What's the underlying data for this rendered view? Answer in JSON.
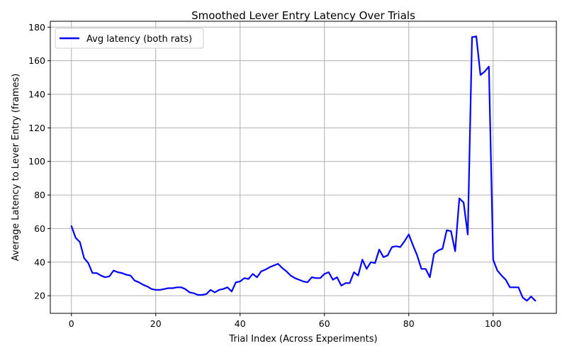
{
  "chart_data": {
    "type": "line",
    "title": "Smoothed Lever Entry Latency Over Trials",
    "xlabel": "Trial Index (Across Experiments)",
    "ylabel": "Average Latency to Lever Entry (frames)",
    "xlim": [
      -5,
      115
    ],
    "ylim": [
      9.5,
      183.5
    ],
    "xticks": [
      0,
      20,
      40,
      60,
      80,
      100
    ],
    "yticks": [
      20,
      40,
      60,
      80,
      100,
      120,
      140,
      160,
      180
    ],
    "grid": true,
    "legend_position": "upper-left",
    "series": [
      {
        "name": "Avg latency (both rats)",
        "color": "#0000ff",
        "x": [
          0,
          1,
          2,
          3,
          4,
          5,
          6,
          7,
          8,
          9,
          10,
          11,
          12,
          13,
          14,
          15,
          16,
          17,
          18,
          19,
          20,
          21,
          22,
          23,
          24,
          25,
          26,
          27,
          28,
          29,
          30,
          31,
          32,
          33,
          34,
          35,
          36,
          37,
          38,
          39,
          40,
          41,
          42,
          43,
          44,
          45,
          46,
          47,
          48,
          49,
          50,
          51,
          52,
          53,
          54,
          55,
          56,
          57,
          58,
          59,
          60,
          61,
          62,
          63,
          64,
          65,
          66,
          67,
          68,
          69,
          70,
          71,
          72,
          73,
          74,
          75,
          76,
          77,
          78,
          79,
          80,
          81,
          82,
          83,
          84,
          85,
          86,
          87,
          88,
          89,
          90,
          91,
          92,
          93,
          94,
          95,
          96,
          97,
          98,
          99,
          100,
          101,
          102,
          103,
          104,
          105,
          106,
          107,
          108,
          109,
          110
        ],
        "y": [
          61.5,
          54.5,
          52,
          42.5,
          39.5,
          33.5,
          33.5,
          32,
          31,
          31.5,
          35,
          34,
          33.5,
          32.5,
          32,
          29,
          28,
          26.5,
          25.5,
          24,
          23.5,
          23.5,
          24,
          24.5,
          24.5,
          25,
          25,
          24,
          22,
          21.5,
          20.5,
          20.5,
          21,
          23.5,
          22,
          23.5,
          24,
          25,
          22.5,
          28,
          28.5,
          30.5,
          30,
          33,
          31,
          34.5,
          35.5,
          37,
          38,
          39,
          36.5,
          34.5,
          32,
          30.5,
          29.5,
          28.5,
          28,
          31,
          30.5,
          30.5,
          33,
          34,
          29.5,
          31,
          26,
          27.5,
          27.5,
          34,
          32,
          41.5,
          36,
          40,
          39.5,
          47.5,
          43,
          44,
          49,
          49.5,
          49,
          52.5,
          56.5,
          50,
          44,
          36,
          36,
          31,
          45,
          47,
          48,
          59,
          58.5,
          46.5,
          78,
          75.5,
          56.5,
          174,
          174.5,
          151.5,
          153.5,
          156.5,
          41.5,
          35,
          32,
          29.5,
          25,
          25,
          25,
          19,
          17,
          19.5,
          17
        ]
      }
    ]
  }
}
